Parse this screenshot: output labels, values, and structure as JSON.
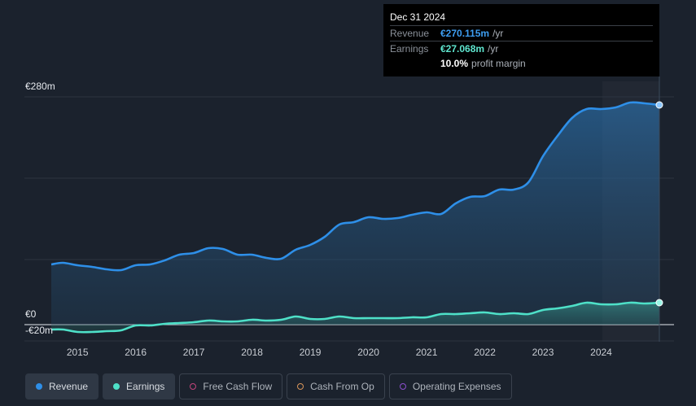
{
  "tooltip": {
    "date": "Dec 31 2024",
    "revenue_label": "Revenue",
    "revenue_value": "€270.115m",
    "revenue_unit": "/yr",
    "earnings_label": "Earnings",
    "earnings_value": "€27.068m",
    "earnings_unit": "/yr",
    "margin_value": "10.0%",
    "margin_label": "profit margin"
  },
  "legend": [
    {
      "label": "Revenue",
      "color": "#2e8fe8",
      "active": true,
      "icon": "revenue-dot-icon"
    },
    {
      "label": "Earnings",
      "color": "#4ee0c8",
      "active": true,
      "icon": "earnings-dot-icon"
    },
    {
      "label": "Free Cash Flow",
      "color": "#c2447c",
      "active": false,
      "icon": "free-cash-flow-dot-icon"
    },
    {
      "label": "Cash From Op",
      "color": "#d8955a",
      "active": false,
      "icon": "cash-from-op-dot-icon"
    },
    {
      "label": "Operating Expenses",
      "color": "#8d4fcf",
      "active": false,
      "icon": "operating-expenses-dot-icon"
    }
  ],
  "chart_data": {
    "type": "area",
    "y_ticks": [
      {
        "value": 280,
        "label": "€280m"
      },
      {
        "value": 0,
        "label": "€0"
      },
      {
        "value": -20,
        "label": "-€20m"
      }
    ],
    "ylim": [
      -20,
      280
    ],
    "xlim": [
      2014.55,
      2025.0
    ],
    "x_ticks": [
      2015,
      2016,
      2017,
      2018,
      2019,
      2020,
      2021,
      2022,
      2023,
      2024
    ],
    "x_tick_labels": [
      "2015",
      "2016",
      "2017",
      "2018",
      "2019",
      "2020",
      "2021",
      "2022",
      "2023",
      "2024"
    ],
    "grid": true,
    "series": [
      {
        "name": "Revenue",
        "color": "#2e8fe8",
        "x": [
          2014.5,
          2014.75,
          2015.0,
          2015.25,
          2015.5,
          2015.75,
          2016.0,
          2016.25,
          2016.5,
          2016.75,
          2017.0,
          2017.25,
          2017.5,
          2017.75,
          2018.0,
          2018.25,
          2018.5,
          2018.75,
          2019.0,
          2019.25,
          2019.5,
          2019.75,
          2020.0,
          2020.25,
          2020.5,
          2020.75,
          2021.0,
          2021.25,
          2021.5,
          2021.75,
          2022.0,
          2022.25,
          2022.5,
          2022.75,
          2023.0,
          2023.25,
          2023.5,
          2023.75,
          2024.0,
          2024.25,
          2024.5,
          2024.75,
          2025.0
        ],
        "values": [
          74,
          76,
          73,
          71,
          68,
          67,
          73,
          74,
          79,
          86,
          88,
          94,
          93,
          86,
          86,
          82,
          81,
          92,
          98,
          108,
          123,
          126,
          132,
          130,
          131,
          135,
          138,
          136,
          149,
          157,
          158,
          166,
          166,
          175,
          207,
          232,
          254,
          265,
          265,
          267,
          273,
          272,
          270
        ]
      },
      {
        "name": "Earnings",
        "color": "#4ee0c8",
        "x": [
          2014.5,
          2014.75,
          2015.0,
          2015.25,
          2015.5,
          2015.75,
          2016.0,
          2016.25,
          2016.5,
          2016.75,
          2017.0,
          2017.25,
          2017.5,
          2017.75,
          2018.0,
          2018.25,
          2018.5,
          2018.75,
          2019.0,
          2019.25,
          2019.5,
          2019.75,
          2020.0,
          2020.25,
          2020.5,
          2020.75,
          2021.0,
          2021.25,
          2021.5,
          2021.75,
          2022.0,
          2022.25,
          2022.5,
          2022.75,
          2023.0,
          2023.25,
          2023.5,
          2023.75,
          2024.0,
          2024.25,
          2024.5,
          2024.75,
          2025.0
        ],
        "values": [
          -6,
          -6,
          -9,
          -9,
          -8,
          -7,
          -1,
          -1,
          1,
          2,
          3,
          5,
          4,
          4,
          6,
          5,
          6,
          10,
          7,
          7,
          10,
          8,
          8,
          8,
          8,
          9,
          9,
          13,
          13,
          14,
          15,
          13,
          14,
          13,
          18,
          20,
          23,
          27,
          25,
          25,
          27,
          26,
          27
        ]
      }
    ]
  }
}
